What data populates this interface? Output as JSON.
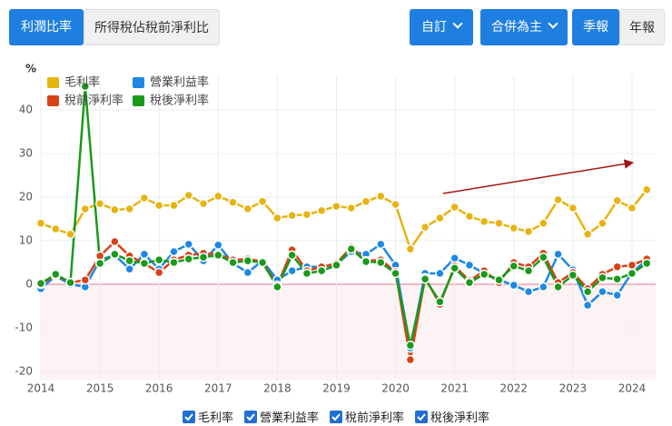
{
  "buttons": {
    "left": [
      "利潤比率",
      "所得稅佔稅前淨利比"
    ],
    "right": [
      "自訂",
      "合併為主",
      "季報",
      "年報"
    ]
  },
  "chart_data": {
    "type": "line",
    "y_label": "%",
    "x": [
      2014,
      2014.25,
      2014.5,
      2014.75,
      2015,
      2015.25,
      2015.5,
      2015.75,
      2016,
      2016.25,
      2016.5,
      2016.75,
      2017,
      2017.25,
      2017.5,
      2017.75,
      2018,
      2018.25,
      2018.5,
      2018.75,
      2019,
      2019.25,
      2019.5,
      2019.75,
      2020,
      2020.25,
      2020.5,
      2020.75,
      2021,
      2021.25,
      2021.5,
      2021.75,
      2022,
      2022.25,
      2022.5,
      2022.75,
      2023,
      2023.25,
      2023.5,
      2023.75,
      2024,
      2024.25
    ],
    "series": [
      {
        "name": "毛利率",
        "color": "#e6b412",
        "values": [
          14,
          12.7,
          11.5,
          17.3,
          18.5,
          17.1,
          17.3,
          19.8,
          18.1,
          18.1,
          20.4,
          18.5,
          20.2,
          18.8,
          17.3,
          19,
          15.2,
          15.8,
          16,
          16.9,
          17.9,
          17.5,
          19,
          20.2,
          18.3,
          8.1,
          13.1,
          15.2,
          17.7,
          15.6,
          14.4,
          14,
          12.9,
          12.1,
          14,
          19.4,
          17.5,
          11.5,
          14,
          19.2,
          17.5,
          21.7
        ]
      },
      {
        "name": "營業利益率",
        "color": "#1e88e5",
        "values": [
          -1,
          1.9,
          0,
          -0.6,
          5.6,
          6.7,
          3.5,
          6.9,
          3.5,
          7.5,
          9.2,
          5.4,
          9,
          4.8,
          2.7,
          5.4,
          1,
          3.1,
          4,
          4,
          4.6,
          7.5,
          6.9,
          9.2,
          4.4,
          -14.6,
          2.5,
          2.5,
          6,
          4.4,
          2.5,
          1,
          -0.2,
          -1.7,
          -0.6,
          6.9,
          3.3,
          -4.8,
          -1.7,
          -2.5,
          2.7,
          5.6
        ]
      },
      {
        "name": "稅前淨利率",
        "color": "#d84315",
        "values": [
          0,
          2.1,
          0.4,
          1,
          6.5,
          9.8,
          6.5,
          4.8,
          2.7,
          5.6,
          6.7,
          7.1,
          6.9,
          5.6,
          5.8,
          5.2,
          -0.2,
          7.9,
          3.1,
          4,
          4.8,
          8.5,
          5.4,
          5.6,
          2.9,
          -17.3,
          1.5,
          -4.6,
          4.2,
          0.8,
          3.1,
          0.4,
          5,
          4,
          7.1,
          0.4,
          2.7,
          -1,
          2.3,
          4,
          4.4,
          5.8
        ]
      },
      {
        "name": "稅後淨利率",
        "color": "#1a9a1a",
        "values": [
          0.2,
          2.3,
          0.4,
          45.4,
          4.8,
          6.9,
          5.4,
          4.8,
          5.6,
          5,
          5.8,
          6.2,
          6.7,
          5,
          5.4,
          5,
          -0.6,
          6.7,
          2.5,
          3.1,
          4.4,
          8.1,
          5.2,
          5,
          2.5,
          -14,
          1.2,
          -4,
          3.7,
          0.4,
          2.3,
          1,
          4.2,
          3.1,
          6.2,
          -0.6,
          2.1,
          -1.7,
          1.5,
          1.2,
          2.5,
          4.8
        ]
      }
    ],
    "xlim": [
      2014,
      2024.4
    ],
    "xticks": [
      2014,
      2015,
      2016,
      2017,
      2018,
      2019,
      2020,
      2021,
      2022,
      2023,
      2024
    ],
    "ylim": [
      -22,
      48
    ],
    "yticks": [
      -20,
      -10,
      0,
      10,
      20,
      30,
      40
    ],
    "grid": true,
    "legend": "upper left"
  }
}
